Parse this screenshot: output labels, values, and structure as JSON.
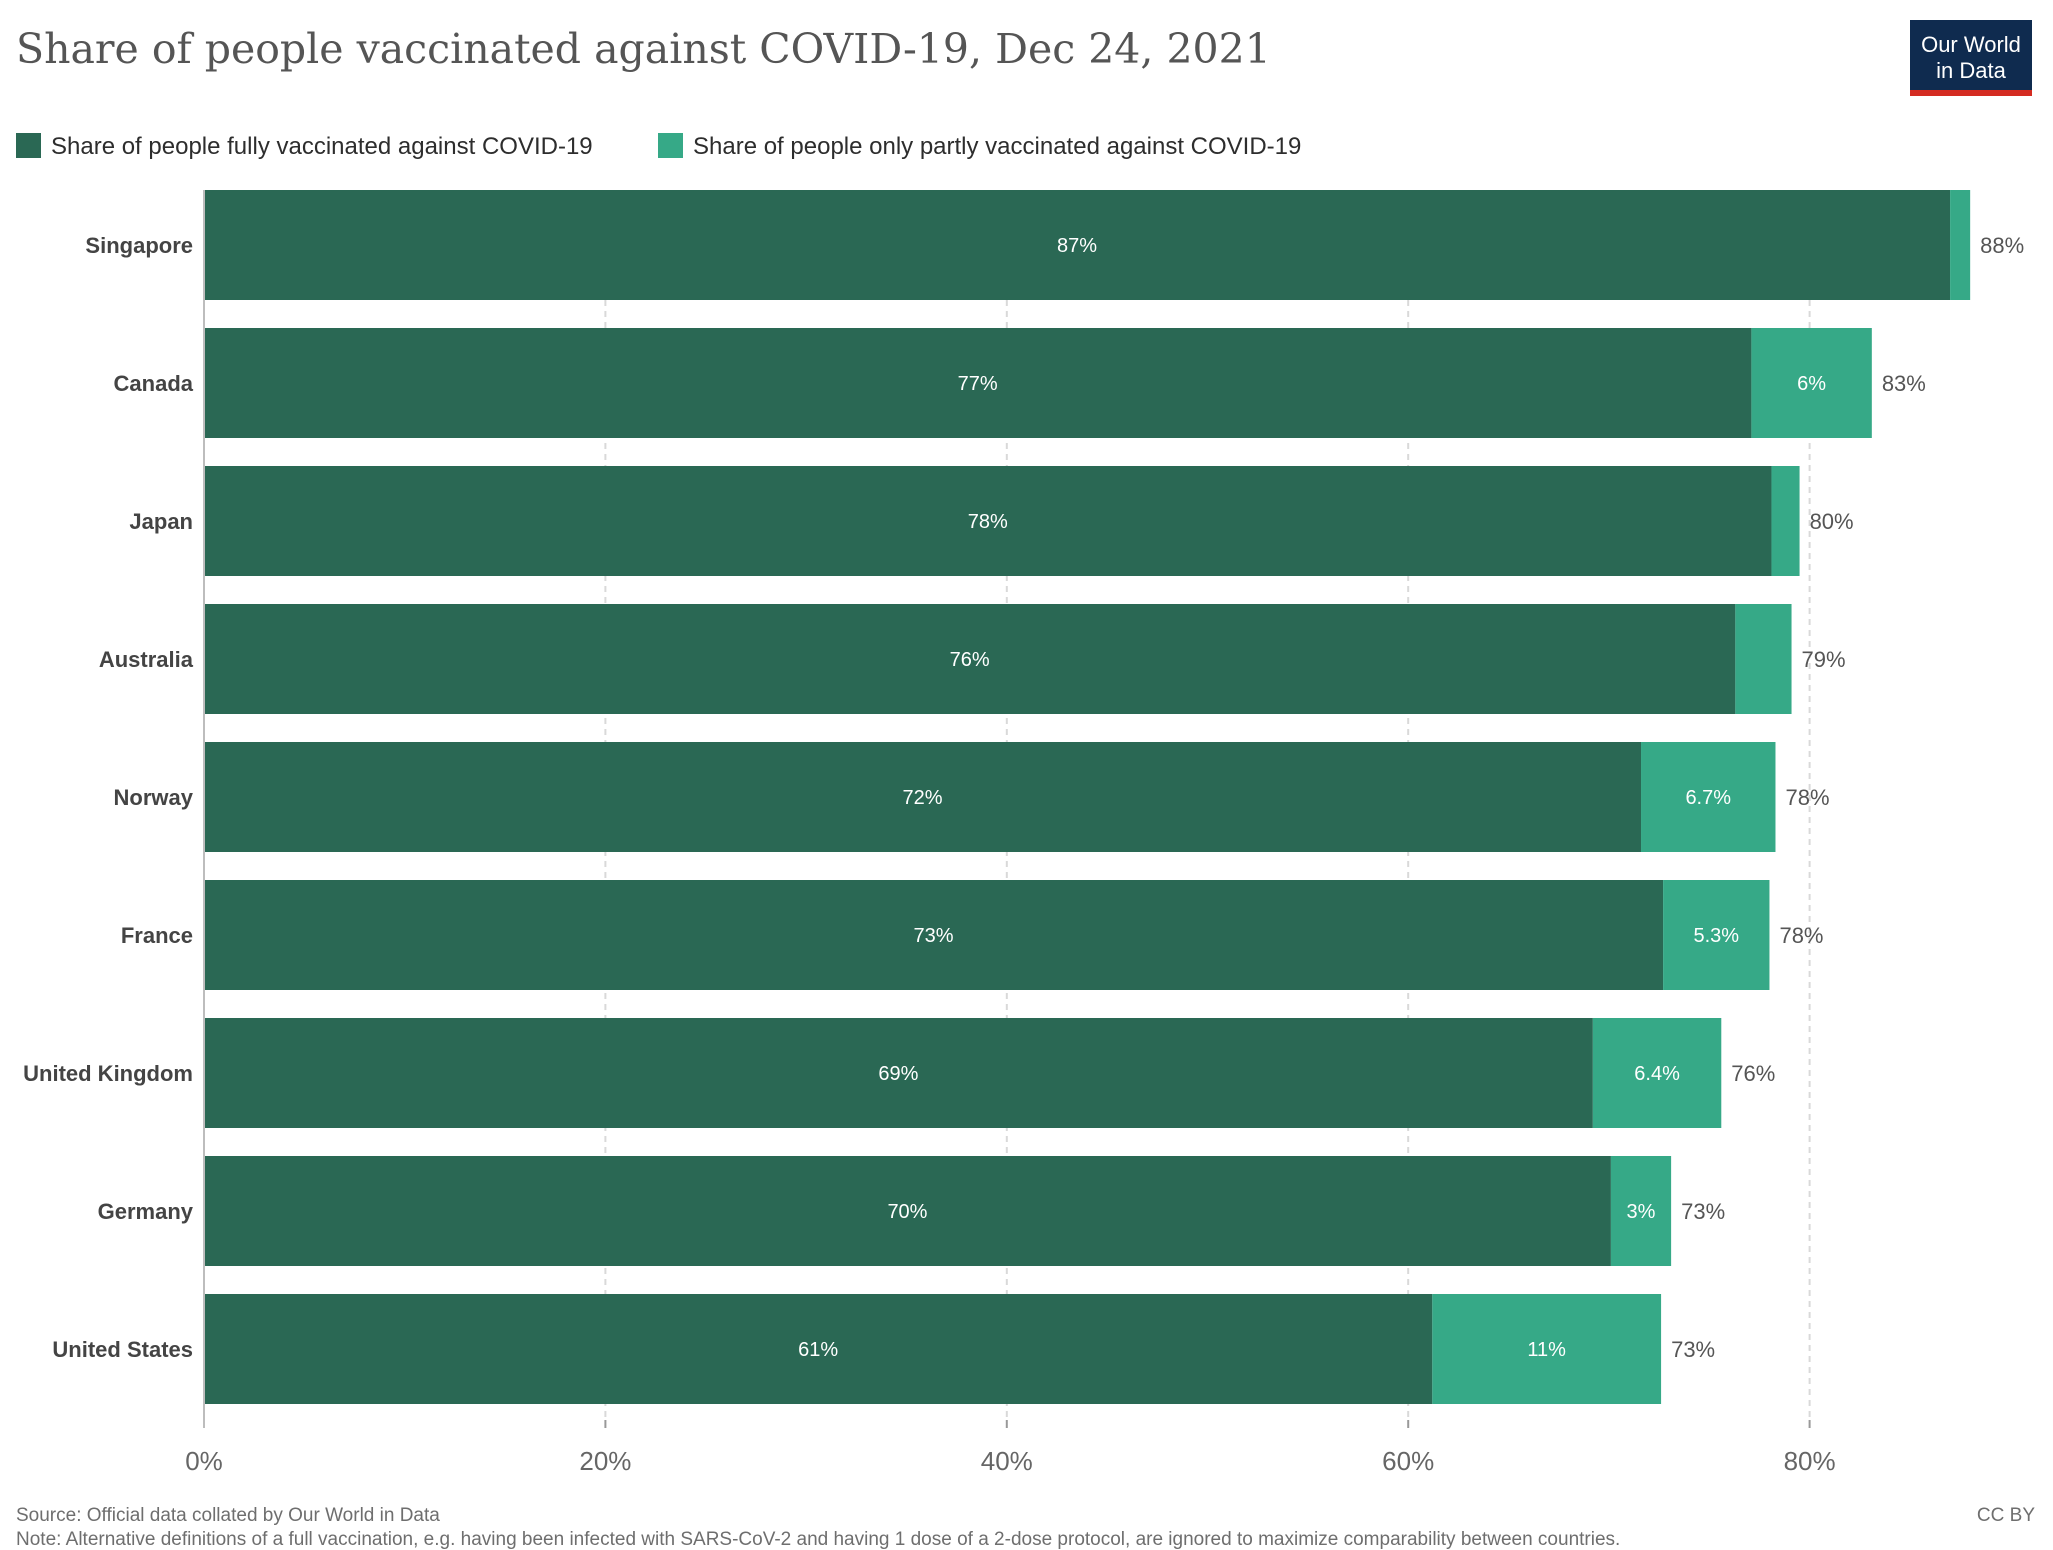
{
  "title": "Share of people vaccinated against COVID-19, Dec 24, 2021",
  "logo": {
    "line1": "Our World",
    "line2": "in Data"
  },
  "license": "CC BY",
  "source": "Source: Official data collated by Our World in Data",
  "note": "Note: Alternative definitions of a full vaccination, e.g. having been infected with SARS-CoV-2 and having 1 dose of a 2-dose protocol, are ignored to maximize comparability between countries.",
  "colors": {
    "fully": "#2a6854",
    "partly": "#36a987",
    "grid": "#d9d9d9",
    "logo_bg": "#0f2b4f",
    "logo_accent": "#d42b21"
  },
  "chart_data": {
    "type": "bar",
    "orientation": "horizontal",
    "stacked": true,
    "categories": [
      "Singapore",
      "Canada",
      "Japan",
      "Australia",
      "Norway",
      "France",
      "United Kingdom",
      "Germany",
      "United States"
    ],
    "series": [
      {
        "name": "Share of people fully vaccinated against COVID-19",
        "values": [
          87,
          77.1,
          78.1,
          76.3,
          71.6,
          72.7,
          69.2,
          70.1,
          61.2
        ],
        "labels": [
          "87%",
          "77%",
          "78%",
          "76%",
          "72%",
          "73%",
          "69%",
          "70%",
          "61%"
        ]
      },
      {
        "name": "Share of people only partly vaccinated against COVID-19",
        "values": [
          1.0,
          6.0,
          1.4,
          2.8,
          6.7,
          5.3,
          6.4,
          3.0,
          11.4
        ],
        "labels": [
          "",
          "6%",
          "",
          "",
          "6.7%",
          "5.3%",
          "6.4%",
          "3%",
          "11%"
        ]
      }
    ],
    "totals": [
      "88%",
      "83%",
      "80%",
      "79%",
      "78%",
      "78%",
      "76%",
      "73%",
      "73%"
    ],
    "xticks": [
      0,
      20,
      40,
      60,
      80
    ],
    "xtick_labels": [
      "0%",
      "20%",
      "40%",
      "60%",
      "80%"
    ],
    "xlim": [
      0,
      88
    ],
    "grid": true,
    "legend_position": "top"
  }
}
